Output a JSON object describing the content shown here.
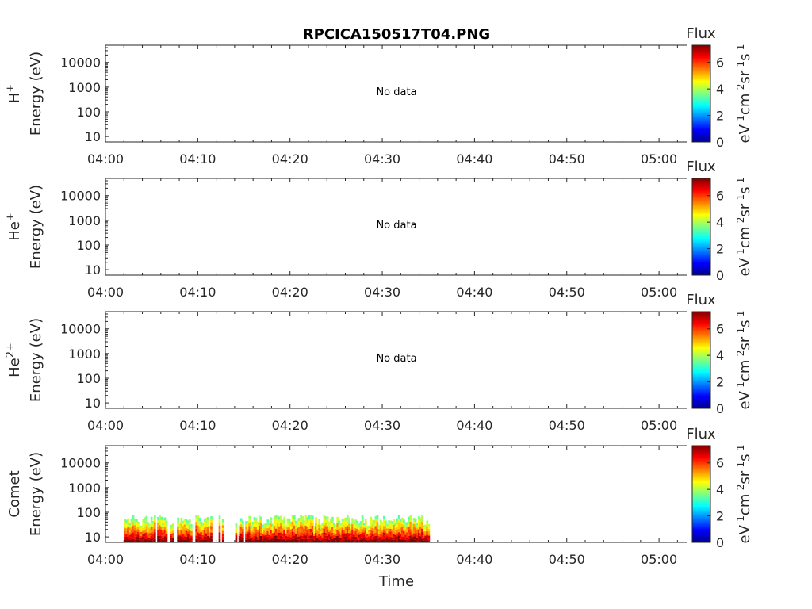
{
  "title": "RPCICA150517T04.PNG",
  "colors": {
    "axis": "#262626",
    "background": "#ffffff"
  },
  "chart_data": {
    "type": "heatmap",
    "xlabel": "Time",
    "x_ticks": [
      "04:00",
      "04:10",
      "04:20",
      "04:30",
      "04:40",
      "04:50",
      "05:00"
    ],
    "x_range_minutes": [
      0,
      63
    ],
    "y_scale": "log",
    "y_ticks": [
      "10",
      "100",
      "1000",
      "10000"
    ],
    "y_range_eV": [
      6,
      50000
    ],
    "colorbar": {
      "label": "Flux",
      "unit": "eV-1cm-2sr-1s-1",
      "ticks": [
        "0",
        "2",
        "4",
        "6"
      ],
      "range": [
        0,
        7.3
      ],
      "colormap": "jet"
    },
    "panels": [
      {
        "species_base": "H",
        "species_sup": "+",
        "ylabel": "Energy (eV)",
        "annotation": "No data"
      },
      {
        "species_base": "He",
        "species_sup": "+",
        "ylabel": "Energy (eV)",
        "annotation": "No data"
      },
      {
        "species_base": "He",
        "species_sup": "2+",
        "ylabel": "Energy (eV)",
        "annotation": "No data"
      },
      {
        "species_base": "Comet",
        "species_sup": "",
        "ylabel": "Energy (eV)",
        "annotation": "",
        "data_time_range": [
          "04:02",
          "04:35"
        ],
        "data_energy_max_eV": 80
      }
    ]
  }
}
